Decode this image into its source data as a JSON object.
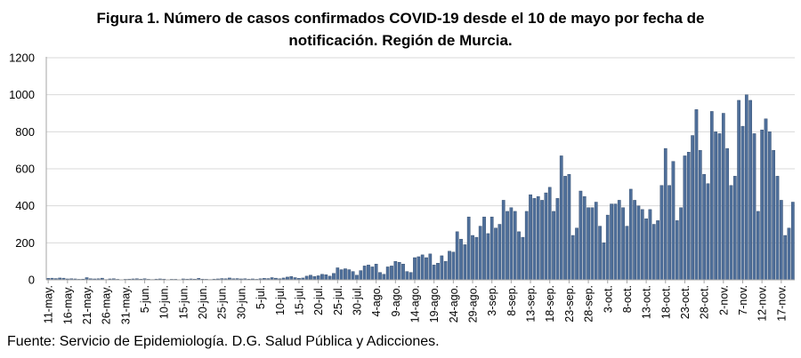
{
  "chart_data": {
    "type": "bar",
    "title": "Figura 1. Número de casos confirmados COVID-19 desde el 10 de mayo por fecha de notificación. Región de Murcia.",
    "title_lines": [
      "Figura 1. Número de casos confirmados COVID-19 desde el 10 de mayo por fecha de",
      "notificación. Región de Murcia."
    ],
    "xlabel": "",
    "ylabel": "",
    "ylim": [
      0,
      1200
    ],
    "yticks": [
      0,
      200,
      400,
      600,
      800,
      1000,
      1200
    ],
    "grid": true,
    "legend": "none",
    "bar_color": "#4f6f9a",
    "start_date": "11-may",
    "end_date": "17-nov",
    "x_tick_labels": [
      "11-may.",
      "16-may.",
      "21-may.",
      "26-may.",
      "31-may.",
      "5-jun.",
      "10-jun.",
      "15-jun.",
      "20-jun.",
      "25-jun.",
      "30-jun.",
      "5-jul.",
      "10-jul.",
      "15-jul.",
      "20-jul.",
      "25-jul.",
      "30-jul.",
      "4-ago.",
      "9-ago.",
      "14-ago.",
      "19-ago.",
      "24-ago.",
      "29-ago.",
      "3-sep.",
      "8-sep.",
      "13-sep.",
      "18-sep.",
      "23-sep.",
      "28-sep.",
      "3-oct.",
      "8-oct.",
      "13-oct.",
      "18-oct.",
      "23-oct.",
      "28-oct.",
      "2-nov.",
      "7-nov.",
      "12-nov.",
      "17-nov."
    ],
    "values": [
      8,
      9,
      7,
      10,
      9,
      5,
      6,
      5,
      3,
      4,
      12,
      6,
      5,
      6,
      9,
      2,
      5,
      6,
      3,
      1,
      3,
      4,
      5,
      6,
      4,
      6,
      3,
      2,
      4,
      5,
      4,
      1,
      3,
      3,
      1,
      5,
      4,
      5,
      4,
      8,
      4,
      3,
      2,
      4,
      5,
      7,
      6,
      10,
      6,
      7,
      5,
      6,
      4,
      5,
      3,
      6,
      8,
      7,
      12,
      9,
      6,
      10,
      15,
      18,
      12,
      8,
      10,
      20,
      25,
      18,
      22,
      30,
      28,
      20,
      35,
      65,
      55,
      60,
      55,
      45,
      25,
      50,
      75,
      80,
      70,
      85,
      40,
      30,
      70,
      75,
      100,
      95,
      85,
      45,
      40,
      120,
      125,
      135,
      120,
      140,
      80,
      90,
      130,
      100,
      155,
      150,
      260,
      220,
      190,
      340,
      240,
      230,
      290,
      340,
      250,
      340,
      280,
      300,
      430,
      370,
      390,
      370,
      260,
      230,
      370,
      460,
      440,
      450,
      430,
      470,
      500,
      370,
      440,
      670,
      560,
      570,
      240,
      280,
      480,
      450,
      390,
      390,
      420,
      290,
      200,
      350,
      410,
      410,
      430,
      390,
      290,
      490,
      430,
      400,
      380,
      330,
      380,
      300,
      320,
      510,
      710,
      510,
      640,
      320,
      390,
      670,
      690,
      780,
      920,
      700,
      570,
      520,
      910,
      800,
      790,
      900,
      710,
      510,
      560,
      970,
      830,
      1000,
      970,
      790,
      370,
      810,
      870,
      800,
      700,
      560,
      430,
      240,
      280,
      420
    ]
  },
  "footer": {
    "source": "Fuente: Servicio de Epidemiología. D.G. Salud Pública y Adicciones."
  }
}
